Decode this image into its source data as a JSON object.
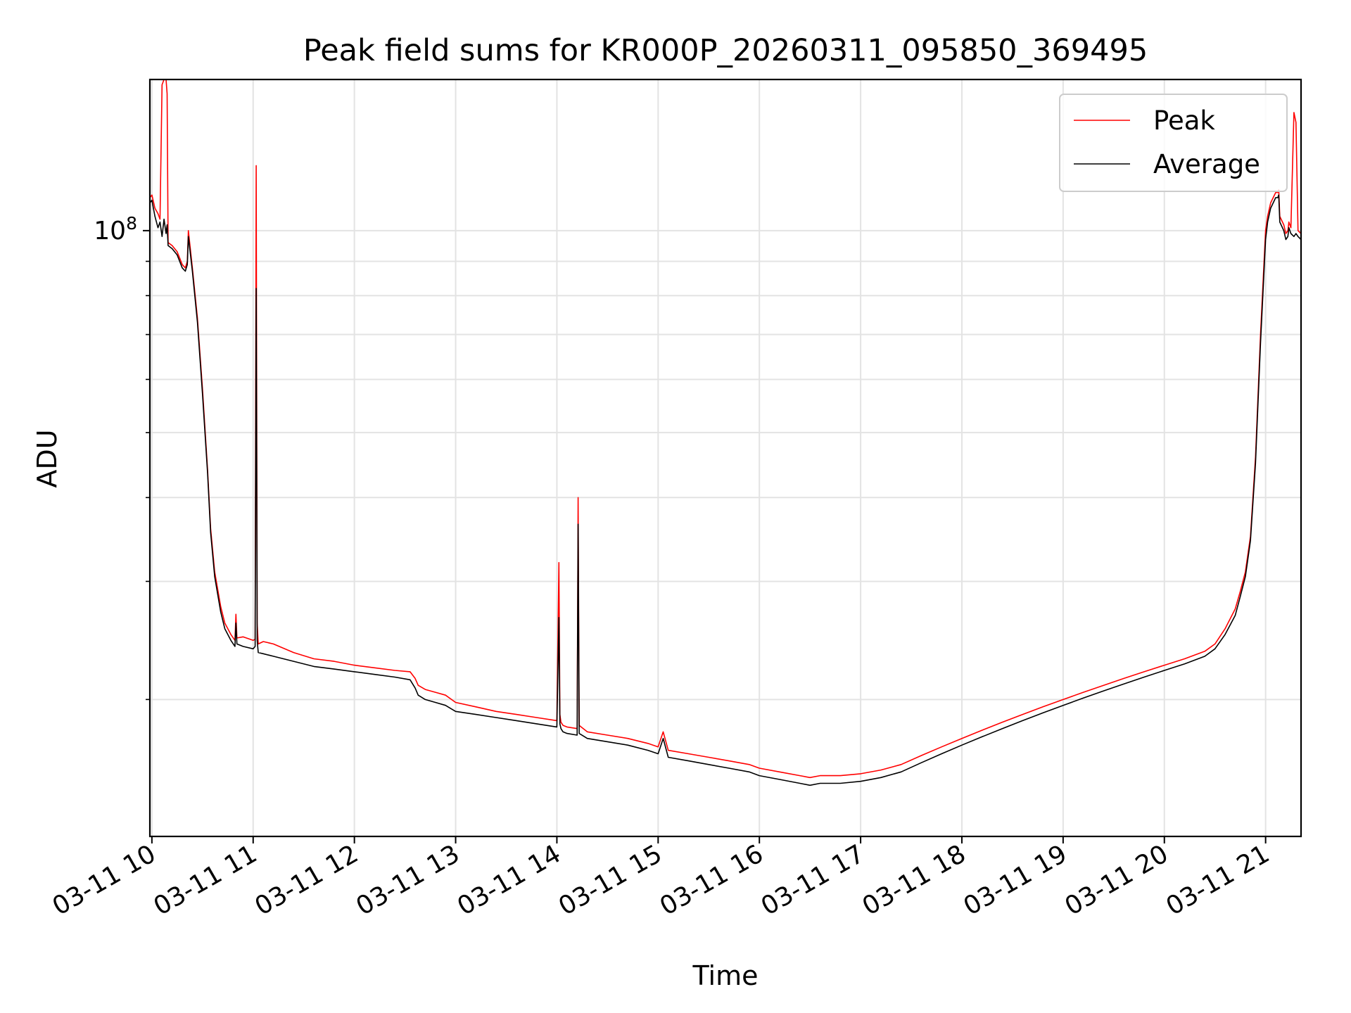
{
  "chart_data": {
    "type": "line",
    "title": "Peak field sums for KR000P_20260311_095850_369495",
    "xlabel": "Time",
    "ylabel": "ADU",
    "yscale": "log",
    "grid": true,
    "legend_position": "top-right",
    "xlim": [
      9.98,
      21.35
    ],
    "ylim": [
      12500000,
      168000000
    ],
    "ytick_labels": [
      {
        "value": 100000000,
        "base": "10",
        "exp": "8"
      }
    ],
    "ytick_minor": [
      20000000,
      30000000,
      40000000,
      50000000,
      60000000,
      70000000,
      80000000,
      90000000
    ],
    "xticks": [
      {
        "value": 10,
        "label": "03-11 10"
      },
      {
        "value": 11,
        "label": "03-11 11"
      },
      {
        "value": 12,
        "label": "03-11 12"
      },
      {
        "value": 13,
        "label": "03-11 13"
      },
      {
        "value": 14,
        "label": "03-11 14"
      },
      {
        "value": 15,
        "label": "03-11 15"
      },
      {
        "value": 16,
        "label": "03-11 16"
      },
      {
        "value": 17,
        "label": "03-11 17"
      },
      {
        "value": 18,
        "label": "03-11 18"
      },
      {
        "value": 19,
        "label": "03-11 19"
      },
      {
        "value": 20,
        "label": "03-11 20"
      },
      {
        "value": 21,
        "label": "03-11 21"
      }
    ],
    "series": [
      {
        "name": "Peak",
        "color": "#ff0000",
        "x": [
          9.98,
          10.0,
          10.03,
          10.06,
          10.08,
          10.1,
          10.12,
          10.14,
          10.15,
          10.16,
          10.2,
          10.25,
          10.3,
          10.33,
          10.35,
          10.36,
          10.4,
          10.45,
          10.5,
          10.55,
          10.58,
          10.62,
          10.68,
          10.72,
          10.78,
          10.82,
          10.83,
          10.84,
          10.9,
          11.0,
          11.02,
          11.03,
          11.04,
          11.05,
          11.1,
          11.2,
          11.4,
          11.6,
          11.8,
          12.0,
          12.2,
          12.4,
          12.55,
          12.6,
          12.63,
          12.7,
          12.8,
          12.9,
          13.0,
          13.2,
          13.4,
          13.6,
          13.8,
          14.0,
          14.02,
          14.03,
          14.04,
          14.06,
          14.1,
          14.2,
          14.21,
          14.22,
          14.3,
          14.5,
          14.7,
          14.9,
          15.0,
          15.05,
          15.1,
          15.3,
          15.5,
          15.7,
          15.9,
          16.0,
          16.2,
          16.4,
          16.5,
          16.6,
          16.8,
          17.0,
          17.2,
          17.4,
          17.6,
          17.8,
          18.0,
          18.2,
          18.4,
          18.6,
          18.8,
          19.0,
          19.2,
          19.4,
          19.6,
          19.8,
          20.0,
          20.2,
          20.4,
          20.5,
          20.6,
          20.7,
          20.75,
          20.8,
          20.85,
          20.9,
          20.95,
          21.0,
          21.02,
          21.05,
          21.1,
          21.12,
          21.13,
          21.14,
          21.18,
          21.2,
          21.22,
          21.23,
          21.25,
          21.28,
          21.3,
          21.32,
          21.35
        ],
        "y": [
          112000000,
          113000000,
          108000000,
          106000000,
          104000000,
          165000000,
          168000000,
          168000000,
          160000000,
          96000000,
          95000000,
          93000000,
          89000000,
          88000000,
          90000000,
          100000000,
          88000000,
          74000000,
          58000000,
          44000000,
          36000000,
          31000000,
          27500000,
          26000000,
          25000000,
          24500000,
          26800000,
          24700000,
          24800000,
          24500000,
          24600000,
          125000000,
          26000000,
          24200000,
          24400000,
          24200000,
          23500000,
          23000000,
          22800000,
          22500000,
          22300000,
          22100000,
          22000000,
          21500000,
          21000000,
          20700000,
          20500000,
          20300000,
          19800000,
          19500000,
          19200000,
          19000000,
          18800000,
          18600000,
          32000000,
          19000000,
          18500000,
          18300000,
          18200000,
          18100000,
          40000000,
          18300000,
          17900000,
          17700000,
          17500000,
          17200000,
          17000000,
          17900000,
          16800000,
          16600000,
          16400000,
          16200000,
          16000000,
          15800000,
          15600000,
          15400000,
          15300000,
          15400000,
          15400000,
          15500000,
          15700000,
          16000000,
          16500000,
          17000000,
          17500000,
          18000000,
          18500000,
          19000000,
          19500000,
          20000000,
          20500000,
          21000000,
          21500000,
          22000000,
          22500000,
          23000000,
          23600000,
          24200000,
          25500000,
          27300000,
          29000000,
          31000000,
          35000000,
          46000000,
          70000000,
          100000000,
          105000000,
          110000000,
          114000000,
          114000000,
          115000000,
          105000000,
          102000000,
          99000000,
          100000000,
          103000000,
          101000000,
          150000000,
          145000000,
          100000000,
          99000000
        ]
      },
      {
        "name": "Average",
        "color": "#000000",
        "x": [
          9.98,
          10.0,
          10.03,
          10.06,
          10.08,
          10.1,
          10.12,
          10.14,
          10.15,
          10.16,
          10.2,
          10.25,
          10.3,
          10.33,
          10.35,
          10.36,
          10.4,
          10.45,
          10.5,
          10.55,
          10.58,
          10.62,
          10.68,
          10.72,
          10.78,
          10.82,
          10.83,
          10.84,
          10.9,
          11.0,
          11.02,
          11.03,
          11.04,
          11.05,
          11.1,
          11.2,
          11.4,
          11.6,
          11.8,
          12.0,
          12.2,
          12.4,
          12.55,
          12.6,
          12.63,
          12.7,
          12.8,
          12.9,
          13.0,
          13.2,
          13.4,
          13.6,
          13.8,
          14.0,
          14.02,
          14.03,
          14.04,
          14.06,
          14.1,
          14.2,
          14.21,
          14.22,
          14.3,
          14.5,
          14.7,
          14.9,
          15.0,
          15.05,
          15.1,
          15.3,
          15.5,
          15.7,
          15.9,
          16.0,
          16.2,
          16.4,
          16.5,
          16.6,
          16.8,
          17.0,
          17.2,
          17.4,
          17.6,
          17.8,
          18.0,
          18.2,
          18.4,
          18.6,
          18.8,
          19.0,
          19.2,
          19.4,
          19.6,
          19.8,
          20.0,
          20.2,
          20.4,
          20.5,
          20.6,
          20.7,
          20.75,
          20.8,
          20.85,
          20.9,
          20.95,
          21.0,
          21.02,
          21.05,
          21.1,
          21.12,
          21.13,
          21.14,
          21.18,
          21.2,
          21.22,
          21.23,
          21.25,
          21.28,
          21.3,
          21.32,
          21.35
        ],
        "y": [
          110000000,
          111000000,
          105000000,
          101000000,
          103000000,
          98000000,
          104000000,
          99000000,
          102000000,
          95000000,
          94000000,
          92000000,
          88000000,
          87000000,
          89000000,
          98000000,
          87000000,
          73000000,
          57000000,
          43500000,
          35500000,
          30500000,
          27000000,
          25500000,
          24500000,
          24000000,
          26000000,
          24200000,
          24000000,
          23800000,
          24000000,
          82000000,
          24500000,
          23500000,
          23400000,
          23200000,
          22800000,
          22400000,
          22200000,
          22000000,
          21800000,
          21600000,
          21400000,
          20800000,
          20300000,
          20000000,
          19800000,
          19600000,
          19200000,
          19000000,
          18800000,
          18600000,
          18400000,
          18200000,
          26500000,
          18400000,
          18100000,
          17900000,
          17800000,
          17700000,
          36500000,
          17800000,
          17500000,
          17300000,
          17100000,
          16800000,
          16600000,
          17500000,
          16400000,
          16200000,
          16000000,
          15800000,
          15600000,
          15400000,
          15200000,
          15000000,
          14900000,
          15000000,
          15000000,
          15100000,
          15300000,
          15600000,
          16100000,
          16600000,
          17100000,
          17600000,
          18100000,
          18600000,
          19100000,
          19600000,
          20100000,
          20600000,
          21100000,
          21600000,
          22100000,
          22600000,
          23200000,
          23800000,
          25000000,
          26700000,
          28500000,
          30500000,
          34500000,
          45000000,
          68000000,
          97000000,
          103000000,
          108000000,
          112000000,
          112000000,
          113000000,
          103000000,
          100000000,
          97000000,
          98000000,
          101000000,
          99000000,
          98000000,
          99000000,
          98000000,
          97000000
        ]
      }
    ]
  }
}
